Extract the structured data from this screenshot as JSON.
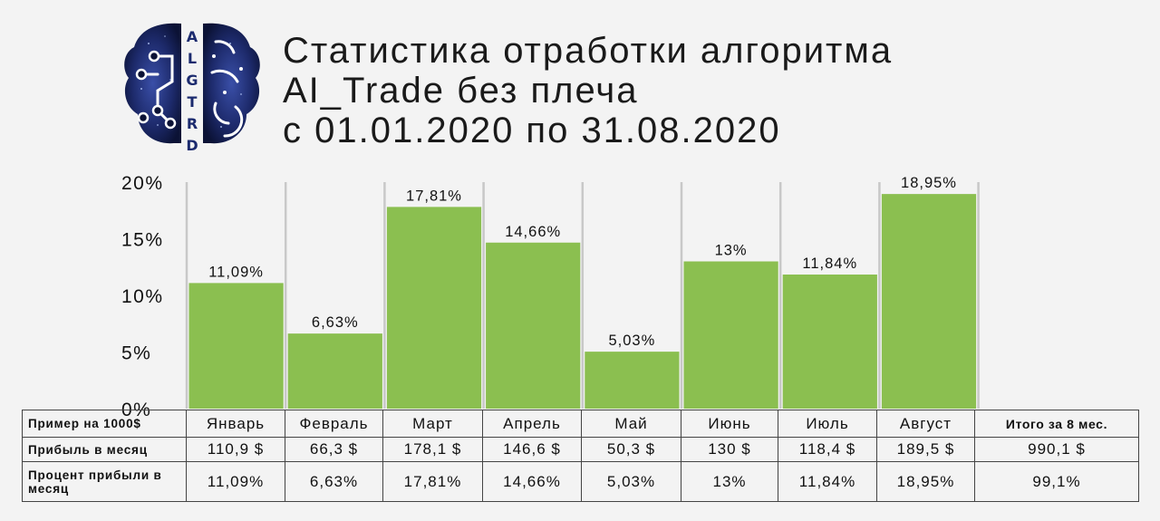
{
  "title": {
    "line1": "Статистика отработки алгоритма",
    "line2": "AI_Trade без плеча",
    "line3": "с 01.01.2020 по 31.08.2020"
  },
  "logo": {
    "text": "ALGTRD",
    "icon": "brain-circuit-icon"
  },
  "colors": {
    "bar": "#8bbf50",
    "grid": "#c8c8c8",
    "background": "#f3f3f3",
    "text": "#111111"
  },
  "chart_data": {
    "type": "bar",
    "categories": [
      "Январь",
      "Февраль",
      "Март",
      "Апрель",
      "Май",
      "Июнь",
      "Июль",
      "Август"
    ],
    "values": [
      11.09,
      6.63,
      17.81,
      14.66,
      5.03,
      13,
      11.84,
      18.95
    ],
    "value_labels": [
      "11,09%",
      "6,63%",
      "17,81%",
      "14,66%",
      "5,03%",
      "13%",
      "11,84%",
      "18,95%"
    ],
    "yticks": [
      "0%",
      "5%",
      "10%",
      "15%",
      "20%"
    ],
    "ylim": [
      0,
      20
    ],
    "grid": true
  },
  "table": {
    "header_row": "Пример на 1000$",
    "months": [
      "Январь",
      "Февраль",
      "Март",
      "Апрель",
      "Май",
      "Июнь",
      "Июль",
      "Август"
    ],
    "total_header": "Итого за 8 мес.",
    "profit_row": {
      "label": "Прибыль в месяц",
      "values": [
        "110,9 $",
        "66,3 $",
        "178,1 $",
        "146,6 $",
        "50,3 $",
        "130 $",
        "118,4 $",
        "189,5 $"
      ],
      "total": "990,1 $"
    },
    "percent_row": {
      "label": "Процент прибыли в месяц",
      "values": [
        "11,09%",
        "6,63%",
        "17,81%",
        "14,66%",
        "5,03%",
        "13%",
        "11,84%",
        "18,95%"
      ],
      "total": "99,1%"
    }
  }
}
